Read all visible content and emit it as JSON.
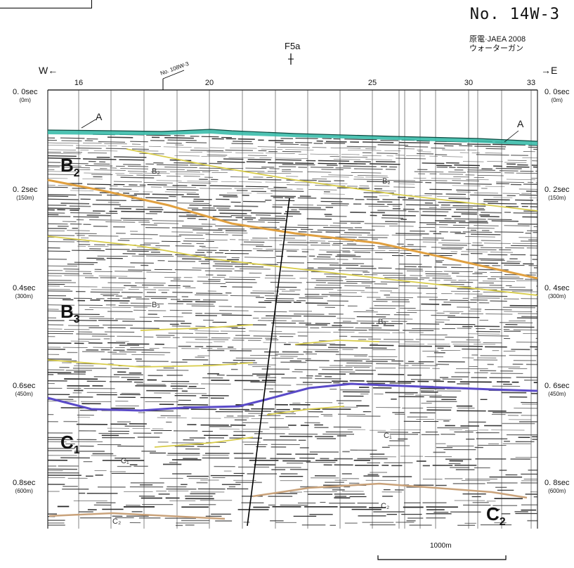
{
  "header": {
    "section_id": "No. 14W-3",
    "source": "原電·JAEA 2008",
    "method": "ウォーターガン",
    "fault": "F5a",
    "crossing_line": "No. 108W-3",
    "west": "W←",
    "east": "→E"
  },
  "shot_ticks": [
    "16",
    "20",
    "25",
    "30",
    "33"
  ],
  "depth_axis": [
    {
      "time": "0. 0sec",
      "depth": "(0m)"
    },
    {
      "time": "0. 2sec",
      "depth": "(150m)"
    },
    {
      "time": "0.4sec",
      "depth": "(300m)"
    },
    {
      "time": "0.6sec",
      "depth": "(450m)"
    },
    {
      "time": "0.8sec",
      "depth": "(600m)"
    }
  ],
  "depth_axis_right": [
    {
      "time": "0. 0sec",
      "depth": "(0m)"
    },
    {
      "time": "0. 2sec",
      "depth": "(150m)"
    },
    {
      "time": "0. 4sec",
      "depth": "(300m)"
    },
    {
      "time": "0. 6sec",
      "depth": "(450m)"
    },
    {
      "time": "0. 8sec",
      "depth": "(600m)"
    }
  ],
  "units": {
    "A": "A",
    "B2_base": "B",
    "B2_sub": "2",
    "B3_base": "B",
    "B3_sub": "3",
    "C1_base": "C",
    "C1_sub": "1",
    "C2_base": "C",
    "C2_sub": "2",
    "B2_small": "B₂",
    "B3_small": "B₃",
    "C1_small": "C₁",
    "C2_small": "C₂"
  },
  "scale_bar": "1000m",
  "colors": {
    "seafloor": "#2fb8a6",
    "yellow_horizon": "#d8cc4a",
    "orange_horizon": "#e0a040",
    "purple_horizon": "#5a4ac8",
    "tan_horizon": "#c9a27a",
    "reflectors": "#1a1a1a"
  }
}
